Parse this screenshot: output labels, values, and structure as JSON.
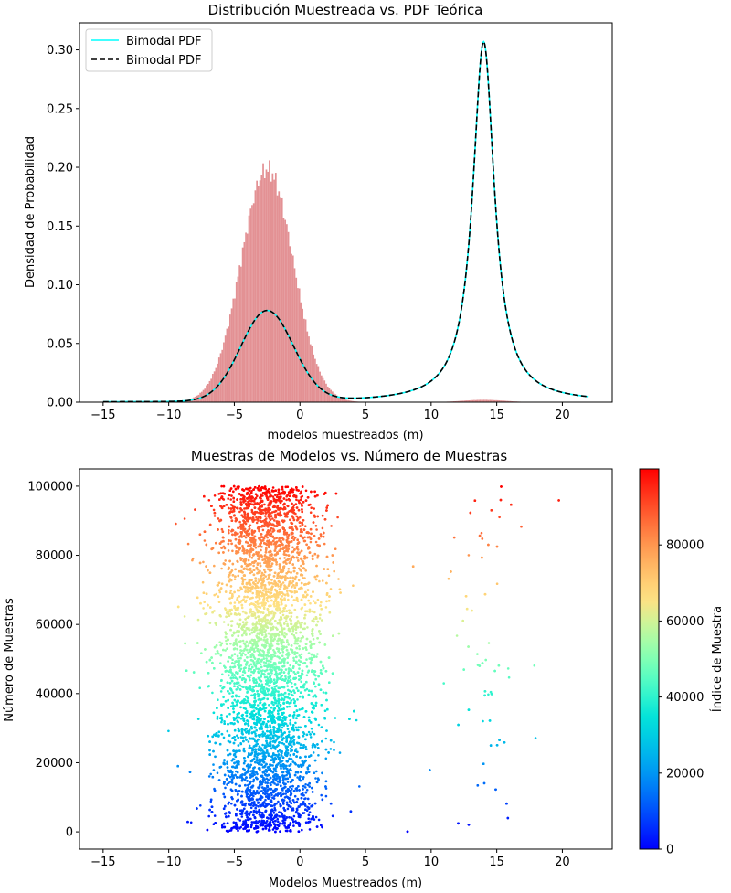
{
  "chart_data": [
    {
      "type": "histogram+line",
      "title": "Distribución Muestreada vs. PDF Teórica",
      "xlabel": "modelos muestreados (m)",
      "ylabel": "Densidad de Probabilidad",
      "xlim": [
        -16.8,
        23.8
      ],
      "ylim": [
        0,
        0.323
      ],
      "x_ticks": [
        "−15",
        "−10",
        "−5",
        "0",
        "5",
        "10",
        "15",
        "20"
      ],
      "y_ticks": [
        "0.00",
        "0.05",
        "0.10",
        "0.15",
        "0.20",
        "0.25",
        "0.30"
      ],
      "legend": {
        "position": "top-left",
        "entries": [
          "Bimodal PDF",
          "Bimodal PDF"
        ]
      },
      "series": [
        {
          "name": "Bimodal PDF",
          "kind": "line",
          "style": "solid",
          "color": "#00ffff",
          "components": [
            {
              "shape": "gaussian",
              "center": -2.5,
              "sigma": 2.0,
              "peak": 0.077
            },
            {
              "shape": "lorentzian",
              "center": 14.0,
              "gamma": 1.0,
              "peak": 0.307
            }
          ],
          "x_range": [
            -15,
            22
          ]
        },
        {
          "name": "Bimodal PDF",
          "kind": "line",
          "style": "dashed",
          "color": "#000000",
          "components": [
            {
              "shape": "gaussian",
              "center": -2.5,
              "sigma": 2.0,
              "peak": 0.077
            },
            {
              "shape": "lorentzian",
              "center": 14.0,
              "gamma": 1.0,
              "peak": 0.307
            }
          ],
          "x_range": [
            -15,
            22
          ]
        },
        {
          "kind": "histogram",
          "color": "#e39194",
          "components": [
            {
              "shape": "gaussian",
              "center": -2.5,
              "sigma": 2.0,
              "peak": 0.198
            },
            {
              "shape": "gaussian",
              "center": 14.0,
              "sigma": 1.6,
              "peak": 0.002
            }
          ],
          "bin_range": [
            -11.5,
            17.5
          ],
          "bin_width": 0.12
        }
      ]
    },
    {
      "type": "scatter",
      "title": "Muestras de Modelos vs. Número de Muestras",
      "xlabel": "Modelos Muestreados (m)",
      "ylabel": "Número de Muestras",
      "xlim": [
        -16.8,
        23.8
      ],
      "ylim": [
        -5000,
        105000
      ],
      "x_ticks": [
        "−15",
        "−10",
        "−5",
        "0",
        "5",
        "10",
        "15",
        "20"
      ],
      "y_ticks": [
        "0",
        "20000",
        "40000",
        "60000",
        "80000",
        "100000"
      ],
      "colormap": "rainbow",
      "point_distribution": {
        "sample_count": 100000,
        "main_cluster": {
          "center": -2.5,
          "sigma": 2.0,
          "fraction": 0.985
        },
        "secondary_cluster": {
          "center": 14.0,
          "gamma": 1.0,
          "fraction": 0.015
        }
      },
      "colorbar": {
        "label": "Índice de Muestra",
        "ticks": [
          "0",
          "20000",
          "40000",
          "60000",
          "80000"
        ],
        "range": [
          0,
          100000
        ]
      }
    }
  ]
}
